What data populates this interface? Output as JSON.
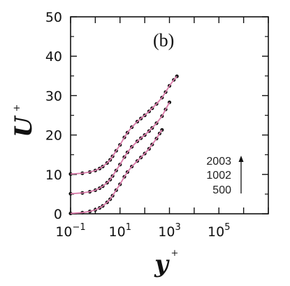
{
  "chart_data": {
    "type": "line",
    "panel_label": "(b)",
    "xlabel": "y",
    "xlabel_sup": "+",
    "ylabel": "U",
    "ylabel_sup": "+",
    "x_scale": "log",
    "xlim": [
      0.1,
      10000000
    ],
    "ylim": [
      0,
      50
    ],
    "x_ticks": [
      {
        "base": "10",
        "exp": "−1",
        "value": 0.1
      },
      {
        "base": "10",
        "exp": "1",
        "value": 10
      },
      {
        "base": "10",
        "exp": "3",
        "value": 1000
      },
      {
        "base": "10",
        "exp": "5",
        "value": 100000
      }
    ],
    "y_ticks": [
      "0",
      "10",
      "20",
      "30",
      "40",
      "50"
    ],
    "y_tick_values": [
      0,
      10,
      20,
      30,
      40,
      50
    ],
    "annotation": {
      "labels": [
        "2003",
        "1002",
        "500"
      ],
      "arrow": "up"
    },
    "colors": {
      "profile": "#d87aa8",
      "markers": "#111111",
      "axis": "#111111"
    },
    "grid": false,
    "series": [
      {
        "name": "500",
        "offset": 0,
        "x": [
          0.1,
          0.3,
          0.6,
          1,
          1.5,
          2,
          3,
          4,
          5,
          7,
          10,
          15,
          20,
          30,
          50,
          70,
          100,
          150,
          200,
          300,
          400,
          500
        ],
        "y": [
          0.1,
          0.3,
          0.6,
          1.0,
          1.5,
          2.0,
          2.9,
          3.7,
          4.6,
          6.0,
          7.5,
          9.4,
          10.6,
          12.0,
          13.4,
          14.3,
          15.3,
          16.5,
          17.6,
          19.1,
          20.4,
          21.3
        ]
      },
      {
        "name": "1002",
        "offset": 5,
        "x": [
          0.1,
          0.3,
          0.6,
          1,
          1.5,
          2,
          3,
          4,
          5,
          7,
          10,
          15,
          20,
          30,
          50,
          70,
          100,
          150,
          200,
          300,
          500,
          700,
          1000
        ],
        "y": [
          5.1,
          5.3,
          5.6,
          6.0,
          6.5,
          7.0,
          7.9,
          8.7,
          9.6,
          11.0,
          12.5,
          14.4,
          15.6,
          17.0,
          18.4,
          19.2,
          20.0,
          21.0,
          21.8,
          23.0,
          24.8,
          26.5,
          28.3
        ]
      },
      {
        "name": "2003",
        "offset": 10,
        "x": [
          0.1,
          0.3,
          0.6,
          1,
          1.5,
          2,
          3,
          4,
          5,
          7,
          10,
          15,
          20,
          30,
          50,
          70,
          100,
          150,
          200,
          300,
          500,
          700,
          1000,
          1500,
          2000
        ],
        "y": [
          10.1,
          10.3,
          10.6,
          11.0,
          11.5,
          12.0,
          12.9,
          13.7,
          14.6,
          16.0,
          17.5,
          19.4,
          20.6,
          22.0,
          23.4,
          24.2,
          25.0,
          26.0,
          26.8,
          27.9,
          29.5,
          30.9,
          32.5,
          34.0,
          34.9
        ]
      }
    ]
  }
}
